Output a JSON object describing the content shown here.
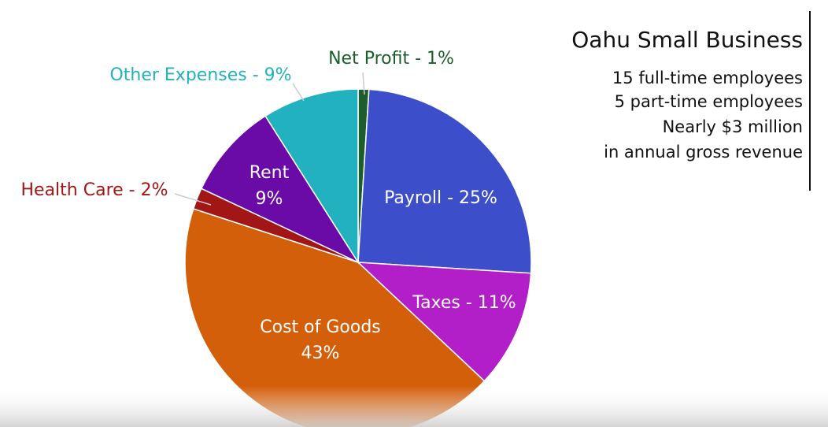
{
  "chart_data": {
    "type": "pie",
    "labels": [
      [
        "Net Profit - 1%"
      ],
      [
        "Payroll - 25%"
      ],
      [
        "Taxes - 11%"
      ],
      [
        "Cost of Goods",
        "43%"
      ],
      [
        "Health Care - 2%"
      ],
      [
        "Rent",
        "9%"
      ],
      [
        "Other Expenses - 9%"
      ]
    ],
    "values": [
      1,
      25,
      11,
      43,
      2,
      9,
      9
    ],
    "colors": [
      "#1b5e2c",
      "#3d4ecb",
      "#b21fc9",
      "#d45f0b",
      "#a31616",
      "#6a0ba8",
      "#22b1be"
    ]
  },
  "info": {
    "title": "Oahu Small Business",
    "lines": [
      "15 full-time employees",
      "5 part-time employees",
      "Nearly $3 million",
      "in annual gross revenue"
    ]
  }
}
